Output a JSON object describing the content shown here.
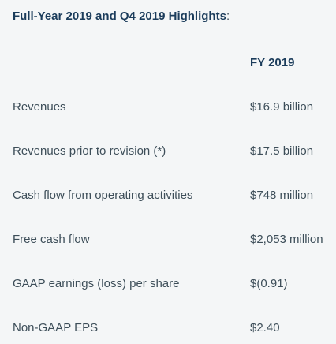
{
  "title": {
    "text": "Full-Year 2019 and Q4 2019 Highlights",
    "colon": ":"
  },
  "column_header": "FY 2019",
  "rows": [
    {
      "label": "Revenues",
      "value": "$16.9 billion"
    },
    {
      "label": "Revenues prior to revision (*)",
      "value": "$17.5 billion"
    },
    {
      "label": "Cash flow from operating activities",
      "value": "$748 million"
    },
    {
      "label": "Free cash flow",
      "value": "$2,053 million"
    },
    {
      "label": "GAAP earnings (loss) per share",
      "value": "$(0.91)"
    },
    {
      "label": "Non-GAAP EPS",
      "value": "$2.40"
    }
  ],
  "colors": {
    "background": "#f4f6f7",
    "heading": "#1b3c5b",
    "text": "#3d4e59"
  }
}
